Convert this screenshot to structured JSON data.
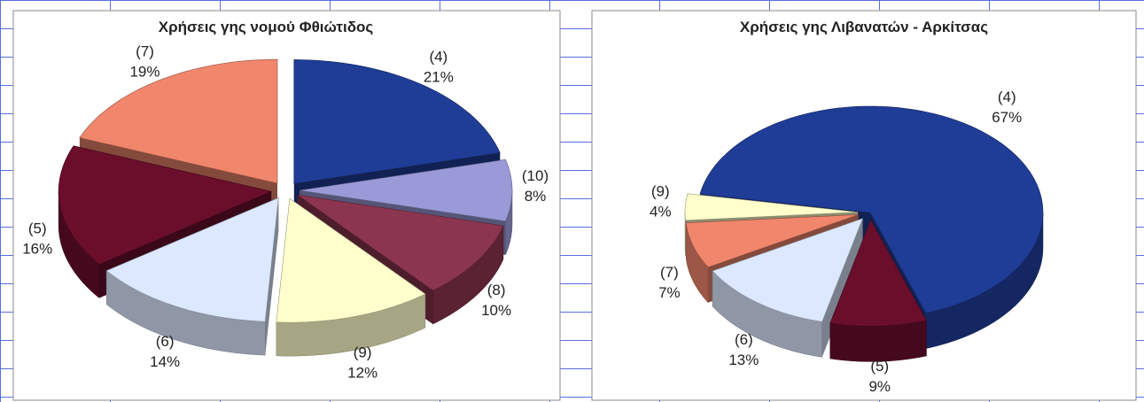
{
  "chart_data": [
    {
      "type": "pie3d",
      "title": "Χρήσεις γης νομού Φθιώτιδος",
      "categories": [
        "(4)",
        "(10)",
        "(8)",
        "(9)",
        "(6)",
        "(5)",
        "(7)"
      ],
      "values": [
        21,
        8,
        10,
        12,
        14,
        16,
        19
      ],
      "value_labels": [
        "21%",
        "8%",
        "10%",
        "12%",
        "14%",
        "16%",
        "19%"
      ],
      "colors": [
        "#1f3c96",
        "#9a9ad8",
        "#8c3550",
        "#ffffcc",
        "#dce8ff",
        "#6a0e2c",
        "#f0866c"
      ]
    },
    {
      "type": "pie3d",
      "title": "Χρήσεις γης Λιβανατών - Αρκίτσας",
      "categories": [
        "(4)",
        "(5)",
        "(6)",
        "(7)",
        "(9)"
      ],
      "values": [
        67,
        9,
        13,
        7,
        4
      ],
      "value_labels": [
        "67%",
        "9%",
        "13%",
        "7%",
        "4%"
      ],
      "colors": [
        "#1f3c96",
        "#6a0e2c",
        "#dce8ff",
        "#f0866c",
        "#ffffcc"
      ]
    }
  ]
}
